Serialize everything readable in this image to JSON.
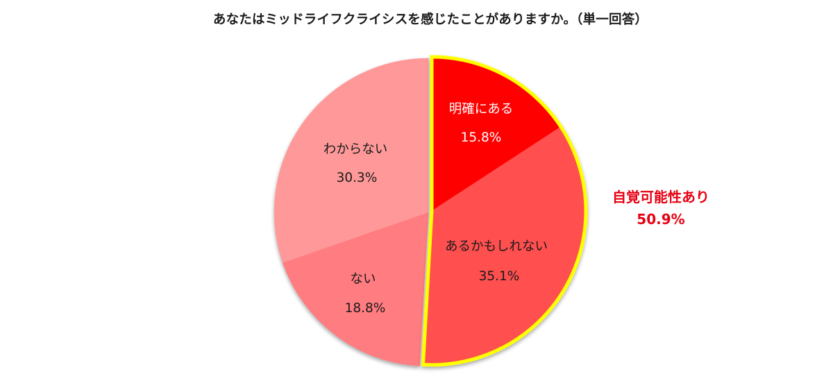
{
  "title": "あなたはミッドライフクライシスを感じたことがありますか。（単一回答）",
  "annotation": {
    "label": "自覚可能性あり",
    "value": "50.9%",
    "color": "#e60012"
  },
  "colors": {
    "highlight_outline": "#ffff00",
    "slice_1": "#ff0000",
    "slice_2": "#ff5050",
    "slice_3": "#ff7c80",
    "slice_4": "#ff9999"
  },
  "slices": [
    {
      "label": "明確にある",
      "value_text": "15.8%",
      "text_color": "#ffffff"
    },
    {
      "label": "あるかもしれない",
      "value_text": "35.1%",
      "text_color": "#1a1a1a"
    },
    {
      "label": "ない",
      "value_text": "18.8%",
      "text_color": "#1a1a1a"
    },
    {
      "label": "わからない",
      "value_text": "30.3%",
      "text_color": "#1a1a1a"
    }
  ],
  "chart_data": {
    "type": "pie",
    "title": "あなたはミッドライフクライシスを感じたことがありますか。（単一回答）",
    "categories": [
      "明確にある",
      "あるかもしれない",
      "ない",
      "わからない"
    ],
    "values": [
      15.8,
      35.1,
      18.8,
      30.3
    ],
    "unit": "%",
    "start_angle": "12 o'clock, clockwise",
    "highlight": {
      "categories": [
        "明確にある",
        "あるかもしれない"
      ],
      "label": "自覚可能性あり",
      "total": 50.9,
      "outline_color": "#ffff00",
      "exploded": true
    },
    "legend": "none (labels inside slices)"
  }
}
